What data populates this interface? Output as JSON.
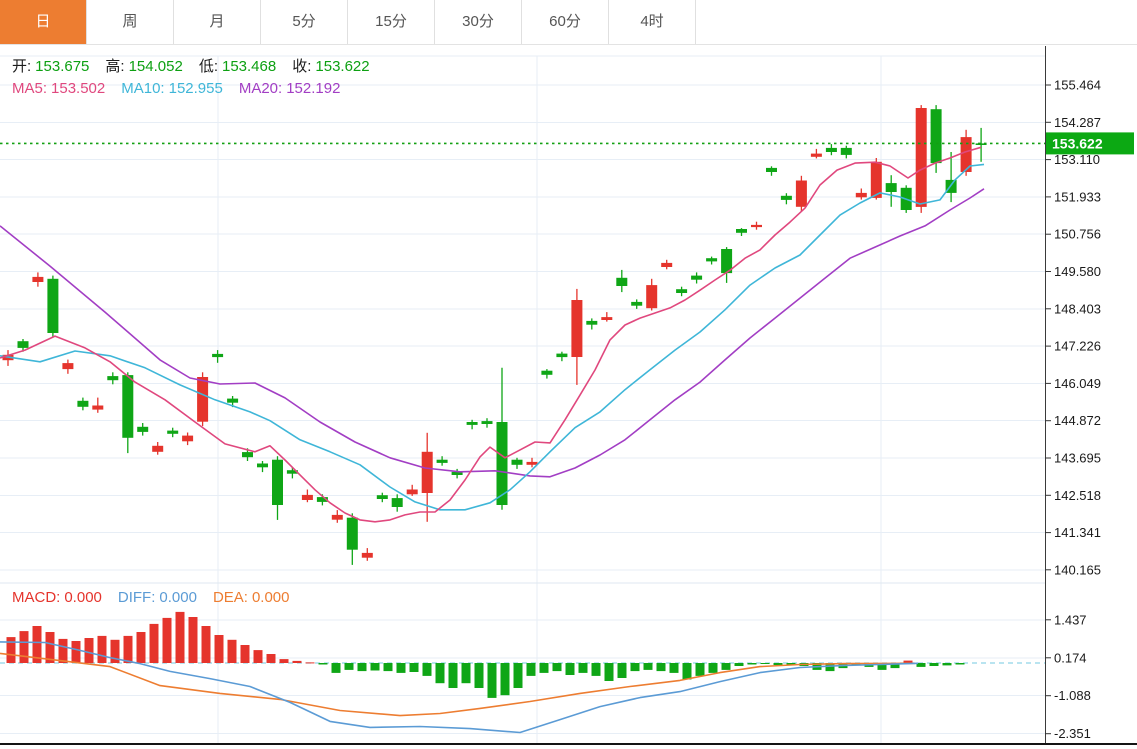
{
  "tabs": {
    "items": [
      {
        "label": "日",
        "active": true
      },
      {
        "label": "周",
        "active": false
      },
      {
        "label": "月",
        "active": false
      },
      {
        "label": "5分",
        "active": false
      },
      {
        "label": "15分",
        "active": false
      },
      {
        "label": "30分",
        "active": false
      },
      {
        "label": "60分",
        "active": false
      },
      {
        "label": "4时",
        "active": false
      }
    ]
  },
  "ohlc": {
    "open_label": "开:",
    "open": "153.675",
    "high_label": "高:",
    "high": "154.052",
    "low_label": "低:",
    "low": "153.468",
    "close_label": "收:",
    "close": "153.622"
  },
  "ma_readout": {
    "ma5_label": "MA5:",
    "ma5": "153.502",
    "ma10_label": "MA10:",
    "ma10": "152.955",
    "ma20_label": "MA20:",
    "ma20": "152.192"
  },
  "macd_readout": {
    "macd_label": "MACD:",
    "macd": "0.000",
    "diff_label": "DIFF:",
    "diff": "0.000",
    "dea_label": "DEA:",
    "dea": "0.000"
  },
  "price_axis": {
    "current_badge": "153.622"
  },
  "colors": {
    "up_green": "#0fa616",
    "down_red": "#e5342c",
    "ma5_pink": "#e0487e",
    "ma10_cyan": "#3fb6d8",
    "ma20_purple": "#a23ec4",
    "diff_blue": "#5b9bd5",
    "dea_orange": "#ed7d31",
    "tab_active_bg": "#ed7d31",
    "badge_bg": "#0ca913",
    "price_dotted_line": "#12a012",
    "grid": "#e7eef6",
    "zero_dash": "#8fd4e6",
    "value_green": "#0da012"
  },
  "chart_data": {
    "type": "candlestick_with_macd",
    "main": {
      "title": "",
      "ylabel": "price",
      "price_top": 156.38,
      "price_bottom": 139.75,
      "axis_ticks": [
        155.464,
        154.287,
        153.11,
        151.933,
        150.756,
        149.58,
        148.403,
        147.226,
        146.049,
        144.872,
        143.695,
        142.518,
        141.341,
        140.165
      ],
      "current_price": 153.622,
      "vertical_gridlines_x": [
        218,
        537,
        881
      ],
      "candles_ohlc": [
        [
          146.95,
          147.1,
          146.6,
          146.78
        ],
        [
          147.17,
          147.45,
          147.05,
          147.38
        ],
        [
          149.41,
          149.55,
          149.1,
          149.25
        ],
        [
          147.64,
          149.45,
          147.5,
          149.35
        ],
        [
          146.69,
          146.8,
          146.35,
          146.5
        ],
        [
          145.31,
          145.6,
          145.2,
          145.5
        ],
        [
          145.35,
          145.6,
          145.12,
          145.22
        ],
        [
          146.15,
          146.4,
          146.02,
          146.28
        ],
        [
          144.33,
          146.4,
          143.85,
          146.31
        ],
        [
          144.52,
          144.8,
          144.4,
          144.68
        ],
        [
          144.08,
          144.2,
          143.8,
          143.89
        ],
        [
          144.46,
          144.65,
          144.35,
          144.56
        ],
        [
          144.4,
          144.5,
          144.1,
          144.22
        ],
        [
          146.25,
          146.4,
          144.7,
          144.84
        ],
        [
          146.88,
          147.1,
          146.7,
          146.98
        ],
        [
          145.44,
          145.65,
          145.3,
          145.57
        ],
        [
          143.72,
          144.0,
          143.6,
          143.88
        ],
        [
          143.4,
          143.6,
          143.25,
          143.52
        ],
        [
          142.21,
          143.75,
          141.74,
          143.64
        ],
        [
          143.2,
          143.4,
          143.05,
          143.31
        ],
        [
          142.53,
          142.7,
          142.3,
          142.37
        ],
        [
          142.31,
          142.55,
          142.2,
          142.46
        ],
        [
          141.9,
          142.05,
          141.65,
          141.75
        ],
        [
          140.8,
          141.95,
          140.32,
          141.81
        ],
        [
          140.7,
          140.85,
          140.45,
          140.55
        ],
        [
          142.4,
          142.6,
          142.3,
          142.52
        ],
        [
          142.15,
          142.55,
          142.0,
          142.43
        ],
        [
          142.7,
          142.85,
          142.5,
          142.55
        ],
        [
          143.89,
          144.49,
          141.68,
          142.59
        ],
        [
          143.54,
          143.75,
          143.45,
          143.64
        ],
        [
          143.16,
          143.35,
          143.05,
          143.26
        ],
        [
          144.74,
          144.9,
          144.6,
          144.83
        ],
        [
          144.77,
          144.95,
          144.65,
          144.86
        ],
        [
          142.21,
          146.54,
          142.06,
          144.83
        ],
        [
          143.48,
          143.7,
          143.35,
          143.64
        ],
        [
          143.57,
          143.7,
          143.4,
          143.48
        ],
        [
          146.32,
          146.5,
          146.2,
          146.45
        ],
        [
          146.88,
          147.05,
          146.75,
          146.99
        ],
        [
          148.68,
          149.03,
          146.0,
          146.88
        ],
        [
          147.9,
          148.1,
          147.75,
          148.02
        ],
        [
          148.14,
          148.3,
          148.0,
          148.05
        ],
        [
          149.12,
          149.63,
          148.93,
          149.38
        ],
        [
          148.5,
          148.7,
          148.4,
          148.62
        ],
        [
          149.15,
          149.35,
          148.35,
          148.42
        ],
        [
          149.85,
          149.95,
          149.65,
          149.72
        ],
        [
          148.9,
          149.1,
          148.8,
          149.02
        ],
        [
          149.32,
          149.55,
          149.2,
          149.45
        ],
        [
          149.9,
          150.05,
          149.8,
          150.0
        ],
        [
          149.53,
          150.35,
          149.22,
          150.29
        ],
        [
          150.8,
          150.95,
          150.7,
          150.92
        ],
        [
          151.05,
          151.15,
          150.9,
          150.98
        ],
        [
          152.72,
          152.9,
          152.6,
          152.85
        ],
        [
          151.84,
          152.05,
          151.7,
          151.97
        ],
        [
          152.45,
          152.6,
          151.46,
          151.62
        ],
        [
          153.3,
          153.45,
          153.15,
          153.2
        ],
        [
          153.35,
          153.6,
          153.25,
          153.48
        ],
        [
          153.26,
          153.55,
          153.15,
          153.48
        ],
        [
          152.06,
          152.2,
          151.85,
          151.92
        ],
        [
          153.04,
          153.16,
          151.85,
          151.9
        ],
        [
          152.09,
          152.62,
          151.62,
          152.37
        ],
        [
          151.52,
          152.3,
          151.43,
          152.22
        ],
        [
          154.74,
          154.83,
          151.43,
          151.62
        ],
        [
          153.0,
          154.83,
          152.69,
          154.7
        ],
        [
          152.06,
          153.35,
          151.77,
          152.47
        ],
        [
          153.82,
          154.05,
          152.6,
          152.72
        ],
        [
          153.6,
          154.11,
          153.04,
          153.622
        ]
      ],
      "ma5_points": [
        [
          0,
          146.85
        ],
        [
          25,
          147.1
        ],
        [
          55,
          147.54
        ],
        [
          85,
          147.17
        ],
        [
          110,
          146.73
        ],
        [
          135,
          146.09
        ],
        [
          165,
          145.53
        ],
        [
          195,
          144.83
        ],
        [
          225,
          144.14
        ],
        [
          255,
          143.89
        ],
        [
          270,
          144.08
        ],
        [
          285,
          143.63
        ],
        [
          300,
          143.16
        ],
        [
          315,
          142.69
        ],
        [
          330,
          142.28
        ],
        [
          345,
          141.96
        ],
        [
          360,
          141.74
        ],
        [
          375,
          141.68
        ],
        [
          390,
          141.74
        ],
        [
          405,
          141.9
        ],
        [
          420,
          141.99
        ],
        [
          435,
          141.99
        ],
        [
          450,
          142.37
        ],
        [
          465,
          143.0
        ],
        [
          480,
          143.73
        ],
        [
          490,
          144.04
        ],
        [
          505,
          143.7
        ],
        [
          520,
          143.95
        ],
        [
          535,
          144.2
        ],
        [
          550,
          144.17
        ],
        [
          565,
          144.9
        ],
        [
          580,
          145.68
        ],
        [
          595,
          146.47
        ],
        [
          610,
          147.42
        ],
        [
          625,
          147.89
        ],
        [
          640,
          148.11
        ],
        [
          655,
          148.27
        ],
        [
          670,
          148.43
        ],
        [
          685,
          148.68
        ],
        [
          700,
          148.99
        ],
        [
          715,
          149.31
        ],
        [
          730,
          149.62
        ],
        [
          745,
          150.0
        ],
        [
          760,
          150.26
        ],
        [
          775,
          150.73
        ],
        [
          790,
          151.14
        ],
        [
          805,
          151.58
        ],
        [
          820,
          152.31
        ],
        [
          837,
          152.78
        ],
        [
          855,
          153.0
        ],
        [
          875,
          153.03
        ],
        [
          890,
          152.91
        ],
        [
          908,
          152.53
        ],
        [
          920,
          152.78
        ],
        [
          935,
          153.0
        ],
        [
          950,
          153.16
        ],
        [
          965,
          153.35
        ],
        [
          981,
          153.5
        ]
      ],
      "ma10_points": [
        [
          0,
          146.92
        ],
        [
          40,
          146.73
        ],
        [
          75,
          147.07
        ],
        [
          110,
          146.92
        ],
        [
          145,
          146.54
        ],
        [
          180,
          146.0
        ],
        [
          215,
          145.53
        ],
        [
          250,
          145.15
        ],
        [
          270,
          144.87
        ],
        [
          300,
          144.27
        ],
        [
          330,
          143.89
        ],
        [
          360,
          143.48
        ],
        [
          390,
          142.78
        ],
        [
          415,
          142.31
        ],
        [
          440,
          142.06
        ],
        [
          465,
          142.06
        ],
        [
          490,
          142.28
        ],
        [
          510,
          142.69
        ],
        [
          530,
          143.26
        ],
        [
          550,
          143.89
        ],
        [
          575,
          144.65
        ],
        [
          600,
          145.15
        ],
        [
          625,
          145.85
        ],
        [
          650,
          146.48
        ],
        [
          675,
          147.1
        ],
        [
          700,
          147.67
        ],
        [
          725,
          148.37
        ],
        [
          750,
          149.15
        ],
        [
          775,
          149.69
        ],
        [
          800,
          150.1
        ],
        [
          820,
          150.73
        ],
        [
          840,
          151.36
        ],
        [
          860,
          151.74
        ],
        [
          880,
          152.06
        ],
        [
          900,
          151.93
        ],
        [
          920,
          151.71
        ],
        [
          940,
          151.84
        ],
        [
          955,
          152.47
        ],
        [
          970,
          152.91
        ],
        [
          984,
          152.96
        ]
      ],
      "ma20_points": [
        [
          0,
          151.02
        ],
        [
          50,
          149.75
        ],
        [
          105,
          148.3
        ],
        [
          160,
          146.79
        ],
        [
          190,
          146.22
        ],
        [
          220,
          146.03
        ],
        [
          255,
          146.06
        ],
        [
          285,
          145.59
        ],
        [
          320,
          144.83
        ],
        [
          355,
          144.2
        ],
        [
          390,
          143.7
        ],
        [
          425,
          143.38
        ],
        [
          460,
          143.26
        ],
        [
          495,
          143.29
        ],
        [
          530,
          143.13
        ],
        [
          550,
          143.1
        ],
        [
          575,
          143.38
        ],
        [
          600,
          143.79
        ],
        [
          625,
          144.27
        ],
        [
          650,
          144.9
        ],
        [
          675,
          145.53
        ],
        [
          700,
          146.09
        ],
        [
          725,
          146.79
        ],
        [
          750,
          147.48
        ],
        [
          775,
          148.11
        ],
        [
          800,
          148.74
        ],
        [
          825,
          149.37
        ],
        [
          850,
          150.0
        ],
        [
          875,
          150.35
        ],
        [
          900,
          150.7
        ],
        [
          925,
          151.02
        ],
        [
          950,
          151.52
        ],
        [
          970,
          151.9
        ],
        [
          984,
          152.19
        ]
      ]
    },
    "macd": {
      "axis_ticks": [
        1.437,
        0.174,
        -1.088,
        -2.351
      ],
      "histogram": [
        0.86,
        1.06,
        1.23,
        1.03,
        0.8,
        0.73,
        0.83,
        0.9,
        0.77,
        0.9,
        1.03,
        1.3,
        1.5,
        1.7,
        1.53,
        1.23,
        0.93,
        0.77,
        0.6,
        0.43,
        0.3,
        0.13,
        0.07,
        0.02,
        -0.05,
        -0.33,
        -0.23,
        -0.27,
        -0.25,
        -0.27,
        -0.33,
        -0.3,
        -0.43,
        -0.67,
        -0.83,
        -0.67,
        -0.83,
        -1.16,
        -1.07,
        -0.83,
        -0.43,
        -0.33,
        -0.27,
        -0.4,
        -0.33,
        -0.43,
        -0.6,
        -0.5,
        -0.27,
        -0.23,
        -0.27,
        -0.33,
        -0.55,
        -0.43,
        -0.33,
        -0.23,
        -0.1,
        -0.05,
        -0.03,
        -0.07,
        -0.08,
        -0.1,
        -0.23,
        -0.27,
        -0.17,
        -0.08,
        -0.13,
        -0.23,
        -0.17,
        0.08,
        -0.13,
        -0.1,
        -0.08,
        -0.05
      ],
      "diff_points": [
        [
          0,
          0.7
        ],
        [
          45,
          0.68
        ],
        [
          80,
          0.42
        ],
        [
          110,
          0.18
        ],
        [
          140,
          -0.02
        ],
        [
          170,
          -0.28
        ],
        [
          210,
          -0.52
        ],
        [
          250,
          -0.78
        ],
        [
          290,
          -1.31
        ],
        [
          330,
          -1.94
        ],
        [
          370,
          -2.14
        ],
        [
          420,
          -2.11
        ],
        [
          470,
          -2.18
        ],
        [
          520,
          -2.31
        ],
        [
          560,
          -1.88
        ],
        [
          600,
          -1.45
        ],
        [
          640,
          -1.15
        ],
        [
          680,
          -0.95
        ],
        [
          720,
          -0.62
        ],
        [
          760,
          -0.32
        ],
        [
          800,
          -0.15
        ],
        [
          845,
          -0.08
        ],
        [
          880,
          -0.05
        ],
        [
          918,
          -0.01
        ]
      ],
      "dea_points": [
        [
          0,
          0.32
        ],
        [
          60,
          0.08
        ],
        [
          110,
          -0.12
        ],
        [
          160,
          -0.75
        ],
        [
          220,
          -1.01
        ],
        [
          280,
          -1.21
        ],
        [
          340,
          -1.58
        ],
        [
          400,
          -1.75
        ],
        [
          440,
          -1.68
        ],
        [
          480,
          -1.51
        ],
        [
          530,
          -1.28
        ],
        [
          580,
          -1.01
        ],
        [
          630,
          -0.78
        ],
        [
          680,
          -0.58
        ],
        [
          720,
          -0.32
        ],
        [
          760,
          -0.12
        ],
        [
          800,
          -0.05
        ],
        [
          845,
          -0.02
        ],
        [
          915,
          -0.01
        ]
      ]
    }
  }
}
